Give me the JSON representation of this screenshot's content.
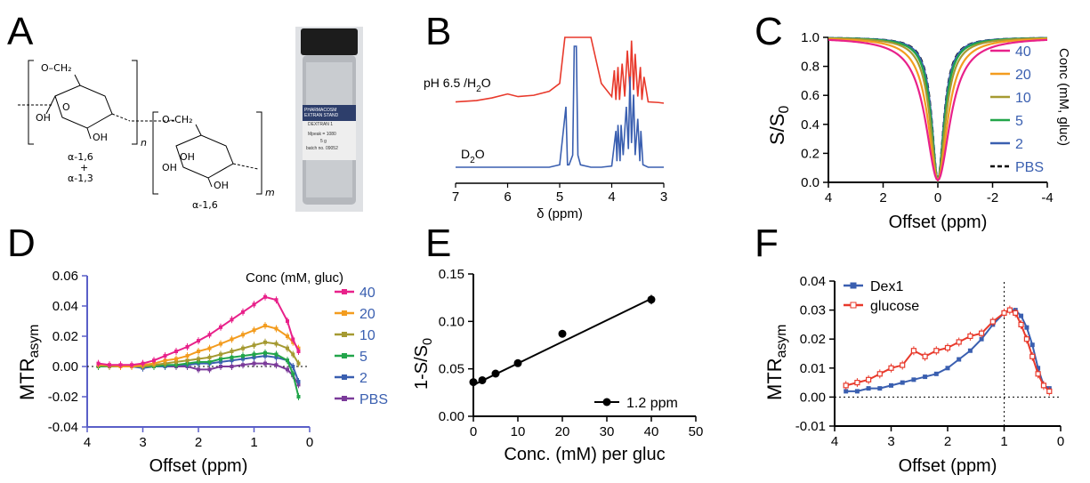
{
  "panel_labels": {
    "A": "A",
    "B": "B",
    "C": "C",
    "D": "D",
    "E": "E",
    "F": "F"
  },
  "panelA": {
    "unit1_top": "O–CH₂",
    "unit1_oh1": "OH",
    "unit1_oh2": "O",
    "unit1_oh3": "OH",
    "unit1_sub": "n",
    "unit2_top": "O–CH₂",
    "unit2_oh1": "OH",
    "unit2_oh2": "OH",
    "unit2_oh3": "OH",
    "unit2_sub": "m",
    "link1": "α-1,6",
    "link_plus": "+",
    "link2": "α-1,3",
    "link3": "α-1,6",
    "vial_line1": "PHARMACOSM",
    "vial_line2": "EXTRAN STAND",
    "vial_line3": "DEXTRAN 1",
    "vial_line4": "Mpeak = 1080",
    "vial_line5": "5 g",
    "vial_line6": "batch no. 09052"
  },
  "colors": {
    "c40": "#e8218a",
    "c20": "#f39c1f",
    "c10": "#a59a32",
    "c5": "#22a54a",
    "c2": "#3a5fb0",
    "pbs": "#7b3b9a",
    "red": "#e8392b",
    "blue": "#3a5fb0",
    "ecolor": "#000000"
  },
  "chart_data": [
    {
      "id": "B",
      "type": "line",
      "title": "",
      "xlabel": "δ (ppm)",
      "ylabel": "",
      "xlim": [
        7,
        3
      ],
      "xticks": [
        "7",
        "6",
        "5",
        "4",
        "3"
      ],
      "series": [
        {
          "name": "pH 6.5 /H₂O",
          "label_main": "pH 6.5 /H",
          "label_sub": "2",
          "label_end": "O",
          "color": "red",
          "x": [
            7.0,
            6.6,
            6.3,
            6.0,
            5.8,
            5.5,
            5.2,
            5.0,
            4.9,
            4.85,
            4.8,
            4.75,
            4.7,
            4.65,
            4.6,
            4.5,
            4.4,
            4.2,
            4.0,
            3.95,
            3.92,
            3.88,
            3.85,
            3.8,
            3.75,
            3.7,
            3.65,
            3.62,
            3.58,
            3.55,
            3.5,
            3.45,
            3.42,
            3.38,
            3.3,
            3.1,
            3.0
          ],
          "y": [
            0.02,
            0.04,
            0.08,
            0.14,
            0.1,
            0.12,
            0.18,
            0.3,
            1.0,
            1.0,
            1.0,
            1.0,
            1.0,
            1.0,
            1.0,
            1.0,
            1.0,
            0.3,
            0.1,
            0.5,
            0.05,
            0.55,
            0.05,
            0.6,
            0.1,
            0.8,
            0.2,
            0.95,
            0.2,
            0.75,
            0.1,
            0.55,
            0.05,
            0.4,
            0.02,
            0.01,
            0.0
          ]
        },
        {
          "name": "D₂O",
          "label_main": "D",
          "label_sub": "2",
          "label_end": "O",
          "color": "blue",
          "x": [
            7.0,
            5.2,
            5.0,
            4.88,
            4.85,
            4.82,
            4.75,
            4.72,
            4.7,
            4.68,
            4.65,
            4.6,
            4.4,
            4.2,
            4.0,
            3.92,
            3.9,
            3.88,
            3.84,
            3.82,
            3.78,
            3.72,
            3.68,
            3.65,
            3.62,
            3.58,
            3.55,
            3.5,
            3.46,
            3.44,
            3.4,
            3.3,
            3.0
          ],
          "y": [
            0.0,
            0.0,
            0.02,
            0.5,
            0.02,
            0.02,
            0.1,
            1.0,
            1.0,
            1.0,
            0.1,
            0.02,
            0.0,
            0.0,
            0.01,
            0.3,
            0.05,
            0.35,
            0.05,
            0.35,
            0.1,
            0.5,
            0.15,
            0.75,
            0.2,
            0.6,
            0.1,
            0.4,
            0.05,
            0.3,
            0.02,
            0.0,
            0.0
          ]
        }
      ]
    },
    {
      "id": "C",
      "type": "line",
      "title": "",
      "xlabel": "Offset (ppm)",
      "ylabel": "S/S",
      "ylabel_sub": "0",
      "xlim": [
        4,
        -4
      ],
      "ylim": [
        0,
        1.0
      ],
      "xticks": [
        "4",
        "2",
        "0",
        "-2",
        "-4"
      ],
      "yticks": [
        "0.0",
        "0.2",
        "0.4",
        "0.6",
        "0.8",
        "1.0"
      ],
      "legend_title": "Conc (mM, gluc)",
      "series": [
        {
          "name": "40",
          "color": "c40",
          "width": 1.2
        },
        {
          "name": "20",
          "color": "c20",
          "width": 0.95
        },
        {
          "name": "10",
          "color": "c10",
          "width": 0.75
        },
        {
          "name": "5",
          "color": "c5",
          "width": 0.65
        },
        {
          "name": "2",
          "color": "c2",
          "width": 0.6
        },
        {
          "name": "PBS",
          "color": "ecolor",
          "width": 0.58,
          "dashed": true
        }
      ]
    },
    {
      "id": "D",
      "type": "line",
      "title": "",
      "xlabel": "Offset (ppm)",
      "ylabel": "MTR",
      "ylabel_sub": "asym",
      "xlim": [
        4,
        0
      ],
      "ylim": [
        -0.04,
        0.06
      ],
      "xticks": [
        "4",
        "3",
        "2",
        "1",
        "0"
      ],
      "yticks": [
        "-0.04",
        "-0.02",
        "0.00",
        "0.02",
        "0.04",
        "0.06"
      ],
      "legend_title": "Conc (mM, gluc)",
      "x": [
        3.8,
        3.6,
        3.4,
        3.2,
        3.0,
        2.8,
        2.6,
        2.4,
        2.2,
        2.0,
        1.8,
        1.6,
        1.4,
        1.2,
        1.0,
        0.8,
        0.6,
        0.4,
        0.3,
        0.2
      ],
      "series": [
        {
          "name": "40",
          "color": "c40",
          "values": [
            0.002,
            0.001,
            0.001,
            0.001,
            0.002,
            0.004,
            0.007,
            0.01,
            0.013,
            0.017,
            0.021,
            0.026,
            0.031,
            0.036,
            0.041,
            0.046,
            0.044,
            0.03,
            0.018,
            0.01
          ]
        },
        {
          "name": "20",
          "color": "c20",
          "values": [
            0.001,
            0.001,
            0.0,
            0.0,
            0.001,
            0.002,
            0.004,
            0.005,
            0.007,
            0.01,
            0.012,
            0.015,
            0.018,
            0.021,
            0.024,
            0.027,
            0.025,
            0.02,
            0.016,
            0.012
          ]
        },
        {
          "name": "10",
          "color": "c10",
          "values": [
            0.001,
            0.0,
            0.0,
            0.0,
            0.0,
            0.001,
            0.002,
            0.003,
            0.004,
            0.005,
            0.006,
            0.008,
            0.01,
            0.012,
            0.014,
            0.016,
            0.015,
            0.012,
            0.008,
            0.002
          ]
        },
        {
          "name": "5",
          "color": "c5",
          "values": [
            0.0,
            0.0,
            0.0,
            0.0,
            0.0,
            0.0,
            0.001,
            0.001,
            0.002,
            0.003,
            0.003,
            0.005,
            0.006,
            0.007,
            0.008,
            0.009,
            0.008,
            0.004,
            -0.005,
            -0.02
          ]
        },
        {
          "name": "2",
          "color": "c2",
          "values": [
            0.001,
            0.0,
            0.0,
            0.0,
            -0.001,
            0.0,
            0.0,
            0.001,
            0.001,
            0.002,
            0.002,
            0.003,
            0.004,
            0.005,
            0.006,
            0.007,
            0.006,
            0.004,
            0.0,
            -0.01
          ]
        },
        {
          "name": "PBS",
          "color": "pbs",
          "values": [
            0.0,
            0.0,
            0.0,
            0.0,
            0.0,
            0.0,
            0.0,
            0.0,
            0.0,
            -0.002,
            -0.002,
            0.0,
            0.0,
            0.001,
            0.002,
            0.002,
            0.001,
            -0.002,
            -0.006,
            -0.012
          ]
        }
      ]
    },
    {
      "id": "E",
      "type": "scatter",
      "title": "",
      "xlabel": "Conc. (mM) per gluc",
      "ylabel": "1-S/S",
      "ylabel_sub": "0",
      "xlim": [
        0,
        50
      ],
      "ylim": [
        0.0,
        0.15
      ],
      "xticks": [
        "0",
        "10",
        "20",
        "30",
        "40",
        "50"
      ],
      "yticks": [
        "0.00",
        "0.05",
        "0.10",
        "0.15"
      ],
      "series": [
        {
          "name": "1.2 ppm",
          "color": "ecolor",
          "x": [
            0,
            2,
            5,
            10,
            20,
            40
          ],
          "y": [
            0.036,
            0.038,
            0.045,
            0.056,
            0.087,
            0.123
          ],
          "err": [
            0.002,
            0.003,
            0.002,
            0.003,
            0.004,
            0.005
          ],
          "fit": {
            "x": [
              0,
              40
            ],
            "y": [
              0.033,
              0.124
            ]
          }
        }
      ]
    },
    {
      "id": "F",
      "type": "line",
      "title": "",
      "xlabel": "Offset (ppm)",
      "ylabel": "MTR",
      "ylabel_sub": "asym",
      "xlim": [
        4,
        0
      ],
      "ylim": [
        -0.01,
        0.04
      ],
      "xticks": [
        "4",
        "3",
        "2",
        "1",
        "0"
      ],
      "yticks": [
        "-0.01",
        "0.00",
        "0.01",
        "0.02",
        "0.03",
        "0.04"
      ],
      "vline": 1.0,
      "series": [
        {
          "name": "Dex1",
          "color": "blue",
          "x": [
            3.8,
            3.6,
            3.4,
            3.2,
            3.0,
            2.8,
            2.6,
            2.4,
            2.2,
            2.0,
            1.8,
            1.6,
            1.4,
            1.2,
            1.0,
            0.9,
            0.8,
            0.7,
            0.6,
            0.5,
            0.4,
            0.3,
            0.2
          ],
          "y": [
            0.002,
            0.002,
            0.003,
            0.003,
            0.004,
            0.005,
            0.006,
            0.007,
            0.008,
            0.01,
            0.013,
            0.016,
            0.02,
            0.025,
            0.029,
            0.03,
            0.03,
            0.028,
            0.024,
            0.018,
            0.01,
            0.004,
            0.003
          ]
        },
        {
          "name": "glucose",
          "color": "red",
          "x": [
            3.8,
            3.6,
            3.4,
            3.2,
            3.0,
            2.8,
            2.6,
            2.4,
            2.2,
            2.0,
            1.8,
            1.6,
            1.4,
            1.2,
            1.0,
            0.9,
            0.8,
            0.7,
            0.6,
            0.5,
            0.4,
            0.3,
            0.2
          ],
          "y": [
            0.004,
            0.005,
            0.006,
            0.008,
            0.01,
            0.011,
            0.016,
            0.014,
            0.016,
            0.017,
            0.019,
            0.021,
            0.022,
            0.026,
            0.029,
            0.03,
            0.029,
            0.025,
            0.02,
            0.014,
            0.008,
            0.004,
            0.002
          ]
        }
      ]
    }
  ]
}
